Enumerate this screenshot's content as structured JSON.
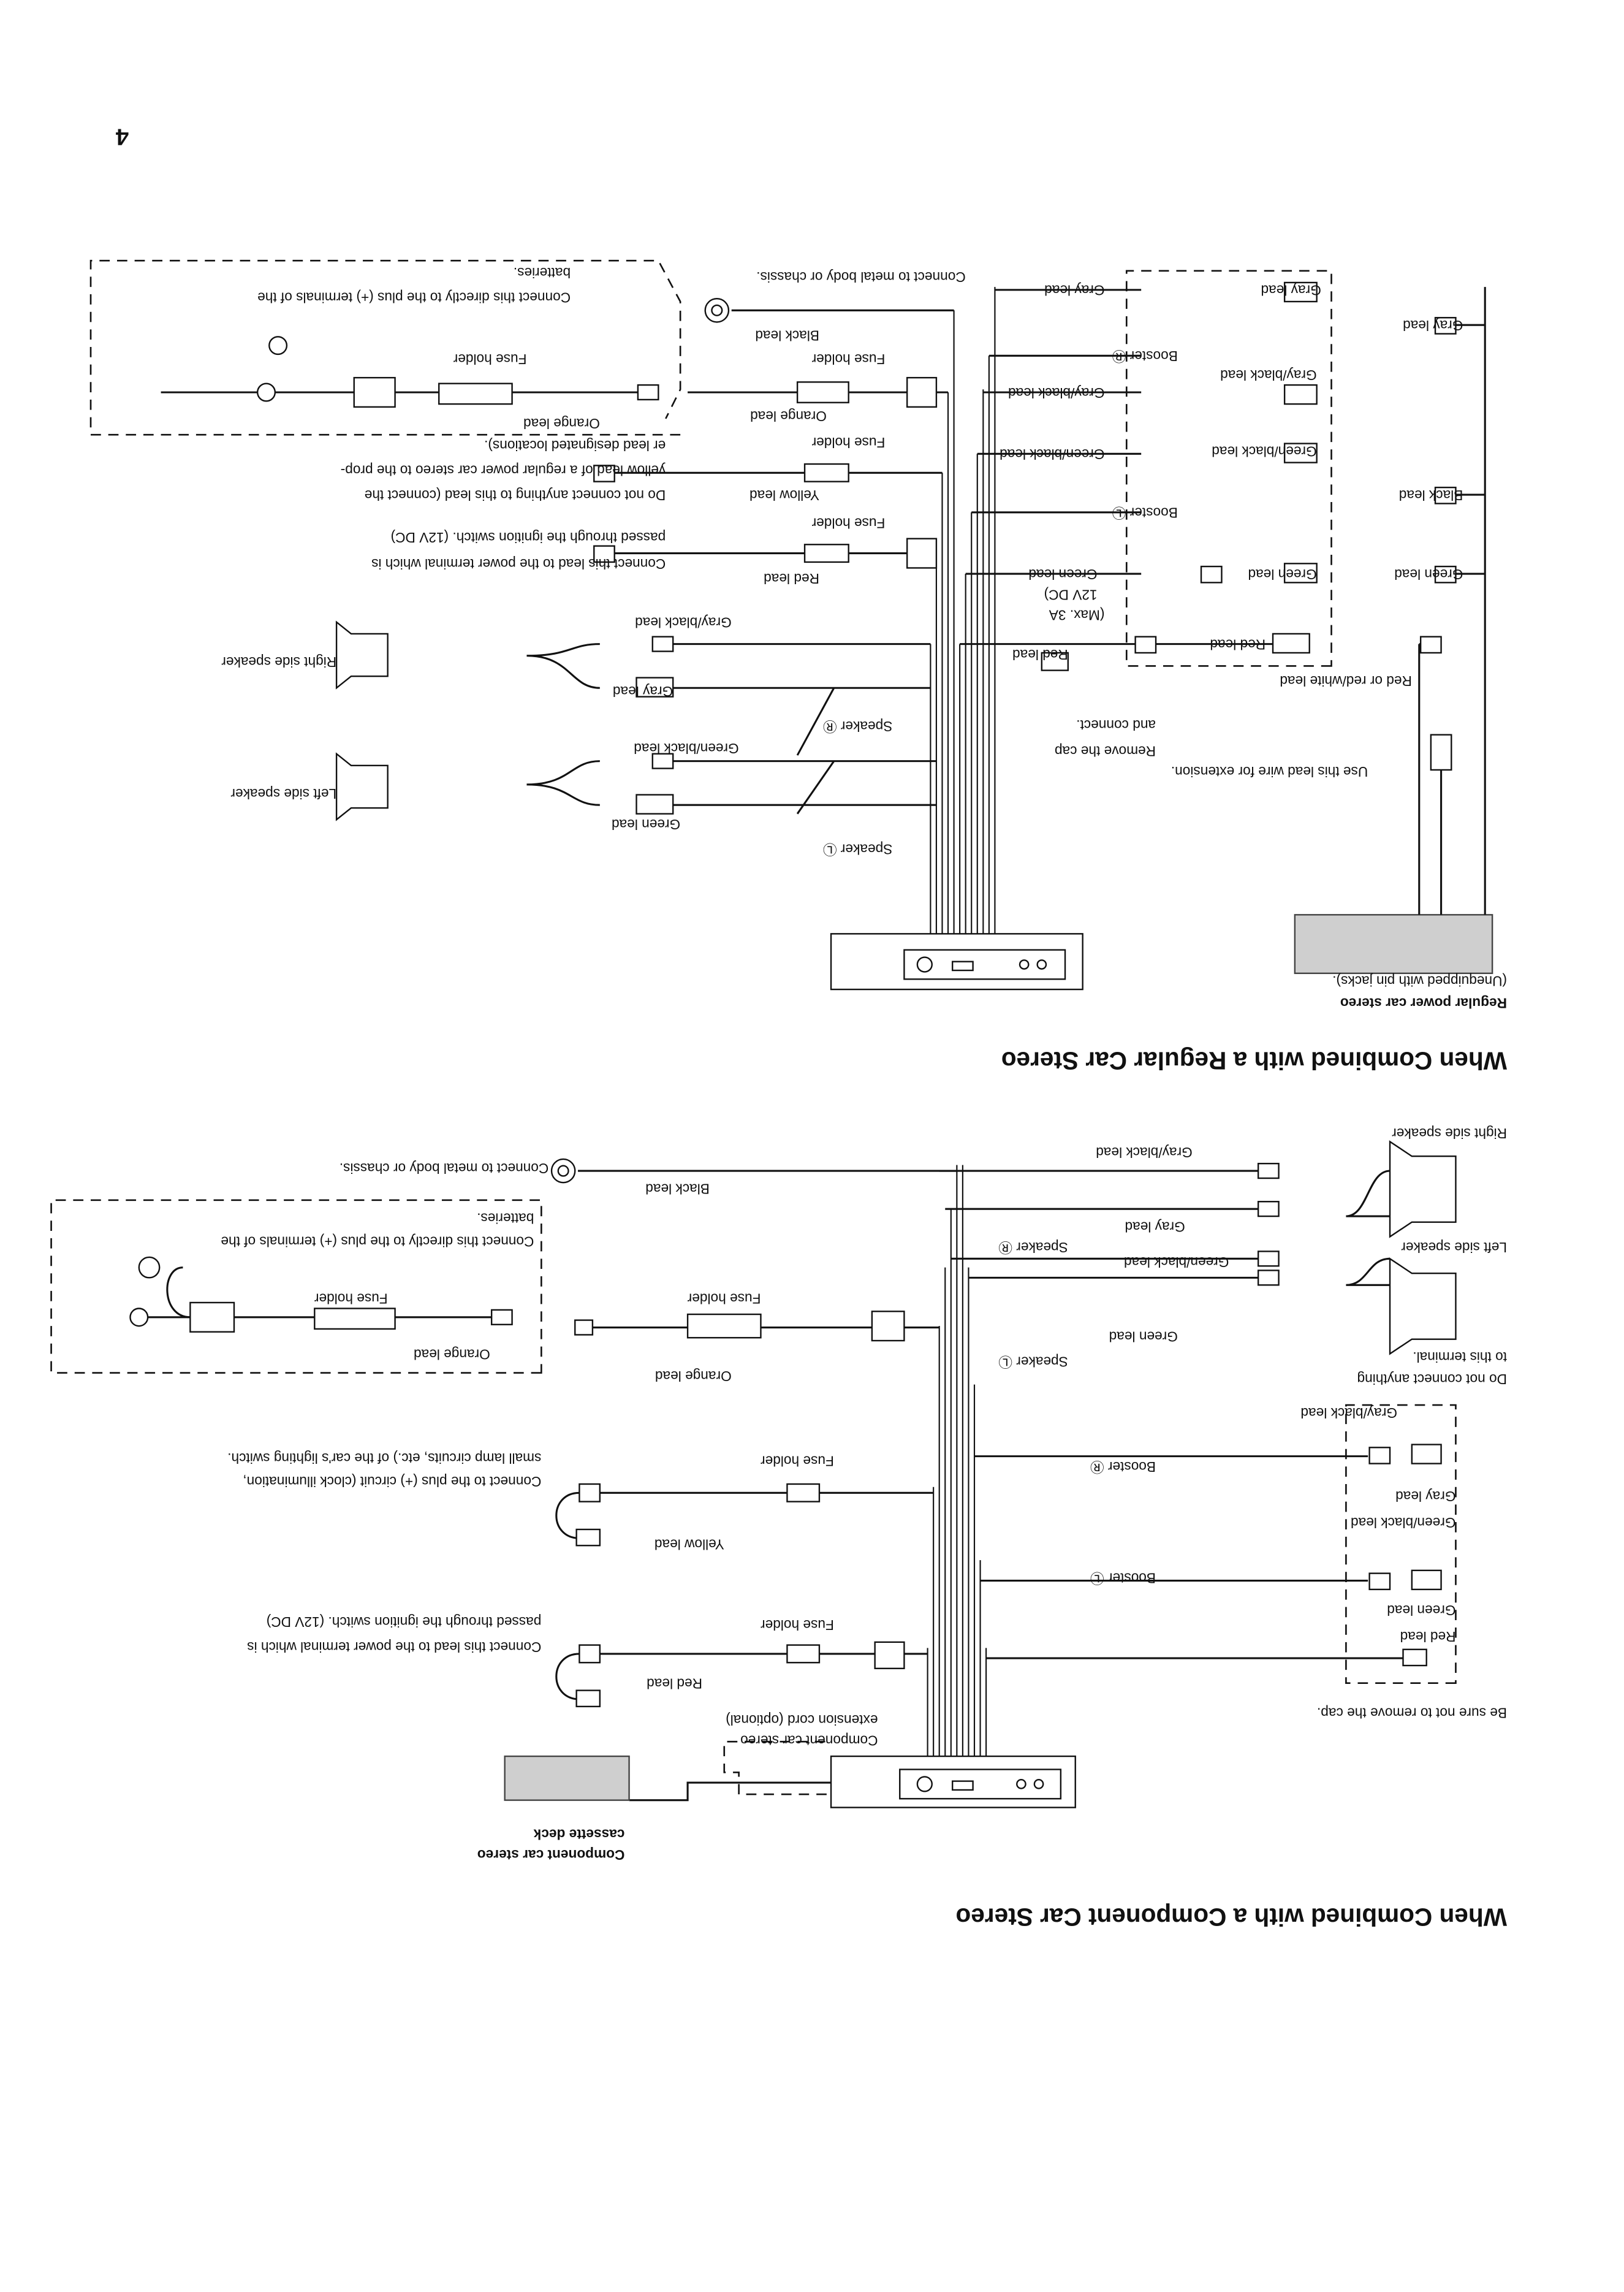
{
  "page_number": "4",
  "component": {
    "title": "When Combined with a Component Car Stereo",
    "cassette_deck_label": [
      "Component car stereo",
      "cassette deck"
    ],
    "extension_cord_label": [
      "Component car stereo",
      "extension cord (optional)"
    ],
    "cap_note": "Be sure not to remove the cap.",
    "booster_box_labels": [
      "Red lead",
      "Green lead",
      "Green/black lead",
      "Gray lead",
      "Gray/black lead"
    ],
    "booster_l": "Booster Ⓛ",
    "booster_r": "Booster Ⓡ",
    "no_connect_note": [
      "Do not connect anything",
      "to this terminal."
    ],
    "speaker_l": "Speaker Ⓛ",
    "speaker_r": "Speaker Ⓡ",
    "green_lead": "Green lead",
    "green_black_lead": "Green/black lead",
    "gray_lead": "Gray lead",
    "gray_black_lead": "Gray/black lead",
    "left_speaker": "Left side speaker",
    "right_speaker": "Right side speaker",
    "red_lead": "Red lead",
    "fuse_holder": "Fuse holder",
    "red_note": [
      "Connect this lead to the power terminal which is",
      "passed through the ignition switch. (12V DC)"
    ],
    "yellow_lead": "Yellow lead",
    "yellow_note": [
      "Connect to the plus (+) circuit (clock illumination,",
      "small lamp circuits, etc.) of the car's lighting switch."
    ],
    "orange_lead": "Orange lead",
    "battery_note": [
      "Connect this directly to the plus (+) terminals of the",
      "batteries."
    ],
    "black_lead": "Black lead",
    "ground_note": "Connect to metal body or chassis."
  },
  "regular": {
    "title": "When Combined with a Regular Car Stereo",
    "stereo_label": [
      "Regular power car stereo",
      "(Unequipped with pin jacks)."
    ],
    "extension_note": "Use this lead wire for extension.",
    "red_white_lead": "Red or red/white lead",
    "green_lead": "Green lead",
    "black_lead": "Black lead",
    "gray_lead": "Gray lead",
    "booster_box_labels": [
      "Red lead",
      "Green lead",
      "Green/black lead",
      "Gray/black lead",
      "Gray lead"
    ],
    "booster_l": "Booster Ⓛ",
    "booster_r": "Booster Ⓡ",
    "mid_gray_lead": "Gray lead",
    "mid_gray_black_lead": "Gray/black lead",
    "mid_green_black_lead": "Green/black lead",
    "mid_green_lead": "Green lead",
    "max_note": [
      "(Max. 3A",
      "12V DC)"
    ],
    "mid_red_lead": "Red lead",
    "cap_note": [
      "Remove the cap",
      "and connect."
    ],
    "speaker_l": "Speaker Ⓛ",
    "speaker_r": "Speaker Ⓡ",
    "spk_gray_black_lead": "Gray/black lead",
    "spk_gray_lead": "Gray lead",
    "spk_green_black_lead": "Green/black lead",
    "spk_green_lead": "Green lead",
    "right_speaker": "Right side speaker",
    "left_speaker": "Left side speaker",
    "red_lead": "Red lead",
    "fuse_holder": "Fuse holder",
    "red_note": [
      "Connect this lead to the power terminal which is",
      "passed through the ignition switch. (12V DC)"
    ],
    "yellow_lead": "Yellow lead",
    "orange_lead": "Orange lead",
    "yellow_note": [
      "Do not connect anything to this lead (connect the",
      "yellow lead of a regular power car stereo to the prop-",
      "er lead designated locations)."
    ],
    "battery_orange_lead": "Orange lead",
    "battery_fuse_holder": "Fuse holder",
    "battery_note": [
      "Connect this directly to the plus (+) terminals of the",
      "batteries."
    ],
    "ground_fuse_holder": "Fuse holder",
    "ground_note": "Connect to metal body or chassis."
  }
}
